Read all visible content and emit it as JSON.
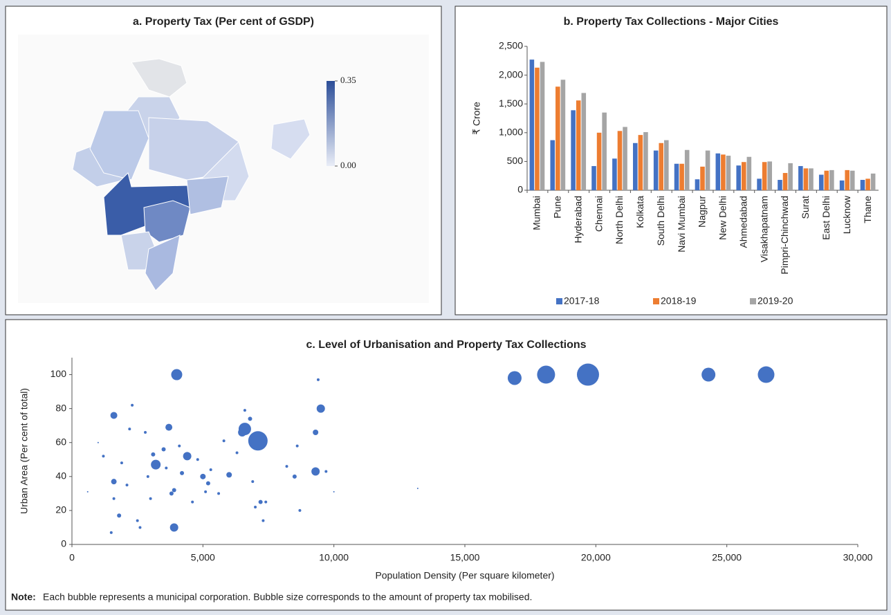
{
  "chart_data": [
    {
      "type": "map",
      "title": "a. Property Tax (Per cent of GSDP)",
      "clim": [
        0,
        0.35
      ],
      "colors": [
        "#e9edf7",
        "#2c4e98"
      ],
      "cticks": [
        {
          "value": 0,
          "label": "0.00"
        },
        0.35
      ]
    },
    {
      "type": "bar",
      "title": "b. Property Tax Collections - Major Cities",
      "ylabel": "₹ Crore",
      "categories": [
        "Mumbai",
        "Pune",
        "Hyderabad",
        "Chennai",
        "North Delhi",
        "Kolkata",
        "South Delhi",
        "Navi Mumbai",
        "Nagpur",
        "New Delhi",
        "Ahmedabad",
        "Visakhapatnam",
        "Pimpri-Chinchwad",
        "Surat",
        "East Delhi",
        "Lucknow",
        "Thane"
      ],
      "series": [
        {
          "name": "2017-18",
          "color": "#4472c4",
          "values": [
            2270,
            870,
            1390,
            420,
            550,
            820,
            690,
            460,
            190,
            640,
            430,
            200,
            180,
            420,
            270,
            170,
            180
          ]
        },
        {
          "name": "2018-19",
          "color": "#ed7d31",
          "values": [
            2130,
            1800,
            1560,
            1000,
            1030,
            960,
            820,
            460,
            410,
            620,
            490,
            490,
            300,
            380,
            340,
            350,
            200
          ]
        },
        {
          "name": "2019-20",
          "color": "#a5a5a5",
          "values": [
            2230,
            1920,
            1690,
            1350,
            1100,
            1010,
            870,
            700,
            690,
            600,
            580,
            500,
            470,
            380,
            350,
            340,
            290
          ]
        }
      ],
      "ylim": [
        0,
        2500
      ],
      "yticks": [
        0,
        500,
        {
          "value": 1000,
          "label": "1,000"
        },
        {
          "value": 1500,
          "label": "1,500"
        },
        {
          "value": 2000,
          "label": "2,000"
        },
        {
          "value": 2500,
          "label": "2,500"
        }
      ],
      "legend": "bottom"
    },
    {
      "type": "scatter",
      "title": "c. Level of Urbanisation and Property Tax Collections",
      "xlabel": "Population Density (Per square kilometer)",
      "ylabel": "Urban Area (Per cent of total)",
      "color": "#4472c4",
      "x": [
        4000,
        16900,
        18100,
        19700,
        24300,
        26500,
        1600,
        3700,
        6600,
        6500,
        7100,
        9500,
        9300,
        9400,
        3200,
        4400,
        1600,
        3900,
        9300,
        6000,
        5000,
        1800,
        7200,
        7400,
        2300,
        6800,
        6600,
        5800,
        3500,
        8500,
        8200,
        3800,
        3900,
        4200,
        5200,
        5600,
        2600,
        3000,
        1500,
        1200,
        2200,
        2800,
        1900,
        3600,
        4800,
        5300,
        6300,
        7300,
        8600,
        8700,
        9700,
        600,
        13200,
        10000,
        1000,
        2100,
        2900,
        4600,
        5100,
        6900,
        7000,
        1600,
        2500,
        4100,
        3100
      ],
      "y": [
        100,
        98,
        100,
        100,
        100,
        100,
        76,
        69,
        68,
        66,
        61,
        80,
        66,
        97,
        47,
        52,
        37,
        10,
        43,
        41,
        40,
        17,
        25,
        25,
        82,
        74,
        79,
        61,
        56,
        40,
        46,
        30,
        32,
        42,
        36,
        30,
        10,
        27,
        7,
        52,
        68,
        66,
        48,
        45,
        50,
        44,
        54,
        14,
        58,
        20,
        43,
        31,
        33,
        31,
        60,
        35,
        40,
        25,
        31,
        37,
        22,
        27,
        14,
        58,
        53
      ],
      "sizes": [
        64,
        100,
        169,
        256,
        100,
        144,
        25,
        25,
        81,
        36,
        196,
        36,
        16,
        4,
        49,
        36,
        16,
        36,
        36,
        16,
        16,
        9,
        9,
        4,
        4,
        9,
        4,
        4,
        9,
        9,
        4,
        9,
        9,
        9,
        9,
        4,
        4,
        4,
        4,
        4,
        4,
        4,
        4,
        4,
        4,
        4,
        4,
        4,
        4,
        4,
        4,
        1,
        1,
        1,
        1,
        4,
        4,
        4,
        4,
        4,
        4,
        4,
        4,
        4,
        9
      ],
      "xlim": [
        0,
        30000
      ],
      "xticks": [
        0,
        {
          "value": 5000,
          "label": "5,000"
        },
        {
          "value": 10000,
          "label": "10,000"
        },
        {
          "value": 15000,
          "label": "15,000"
        },
        {
          "value": 20000,
          "label": "20,000"
        },
        {
          "value": 25000,
          "label": "25,000"
        },
        {
          "value": 30000,
          "label": "30,000"
        }
      ],
      "ylim": [
        0,
        110
      ],
      "yticks": [
        0,
        20,
        40,
        60,
        80,
        100
      ],
      "note_label": "Note:",
      "note": "Each bubble represents a municipal corporation. Bubble size corresponds to the amount of property tax mobilised."
    }
  ]
}
